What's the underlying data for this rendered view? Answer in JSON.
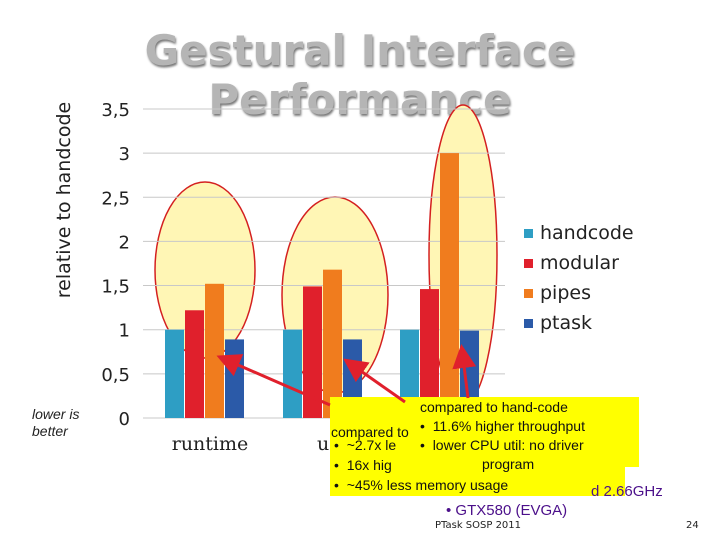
{
  "slide": {
    "title": "Gestural Interface Performance",
    "note": "lower is better",
    "footer": "PTask SOSP 2011",
    "page_number": "24"
  },
  "chart_data": {
    "type": "bar",
    "ylabel": "relative to handcode",
    "xlabel": "",
    "ylim": [
      0,
      3.5
    ],
    "yticks": [
      "0",
      "0,5",
      "1",
      "1,5",
      "2",
      "2,5",
      "3",
      "3,5"
    ],
    "categories": [
      "runtime",
      "us",
      ""
    ],
    "series": [
      {
        "name": "handcode",
        "color": "#2e9ec4",
        "values": [
          1.0,
          1.0,
          1.0
        ]
      },
      {
        "name": "modular",
        "color": "#e0202c",
        "values": [
          1.22,
          1.49,
          1.46
        ]
      },
      {
        "name": "pipes",
        "color": "#f07c1e",
        "values": [
          1.52,
          1.68,
          3.0
        ]
      },
      {
        "name": "ptask",
        "color": "#2b5aa8",
        "values": [
          0.89,
          0.89,
          0.99
        ]
      }
    ],
    "grid": true,
    "legend": "right"
  },
  "callouts": {
    "popup_back": {
      "lines": [
        "compared to",
        "~2.7x le",
        "16x hig",
        "~45% less memory usage"
      ],
      "trailing": "d 2.66GHz"
    },
    "popup_front": {
      "lines": [
        "compared to hand-code",
        "11.6% higher throughput",
        "lower CPU util: no driver",
        "program"
      ]
    },
    "gpu": "• GTX580 (EVGA)",
    "colors": {
      "highlight": "#ffff00",
      "arrow": "#e0202c",
      "ellipse_fill": "#fff6b5",
      "ellipse_stroke": "#d42020"
    }
  }
}
